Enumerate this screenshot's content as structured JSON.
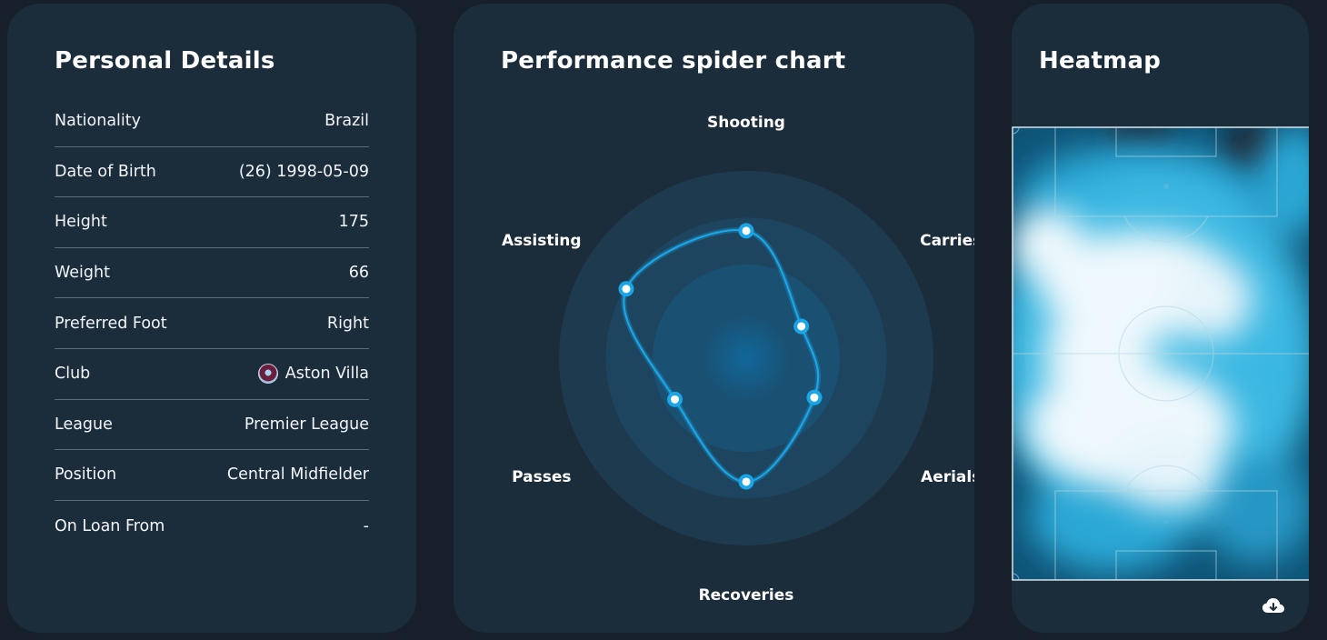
{
  "personal_details": {
    "title": "Personal Details",
    "rows": [
      {
        "label": "Nationality",
        "value": "Brazil"
      },
      {
        "label": "Date of Birth",
        "value": "(26) 1998-05-09"
      },
      {
        "label": "Height",
        "value": "175"
      },
      {
        "label": "Weight",
        "value": "66"
      },
      {
        "label": "Preferred Foot",
        "value": "Right"
      },
      {
        "label": "Club",
        "value": "Aston Villa",
        "icon": "club-badge-icon"
      },
      {
        "label": "League",
        "value": "Premier League"
      },
      {
        "label": "Position",
        "value": "Central Midfielder"
      },
      {
        "label": "On Loan From",
        "value": "-"
      }
    ]
  },
  "spider": {
    "title": "Performance spider chart"
  },
  "chart_data": {
    "type": "radar",
    "categories": [
      "Shooting",
      "Carries",
      "Aerials",
      "Recoveries",
      "Passes",
      "Assisting"
    ],
    "values": [
      0.68,
      0.34,
      0.42,
      0.66,
      0.44,
      0.74
    ],
    "range": [
      0,
      1
    ],
    "rings": 4,
    "colors": {
      "line": "#1aa6e6",
      "point": "#ffffff",
      "ring": "#213f55"
    }
  },
  "heatmap": {
    "title": "Heatmap",
    "download_icon": "cloud-download-icon",
    "colors": {
      "low": "#0d5f85",
      "mid": "#2fb4e0",
      "high": "#eef8fc",
      "lines": "#b9d6e4"
    }
  }
}
